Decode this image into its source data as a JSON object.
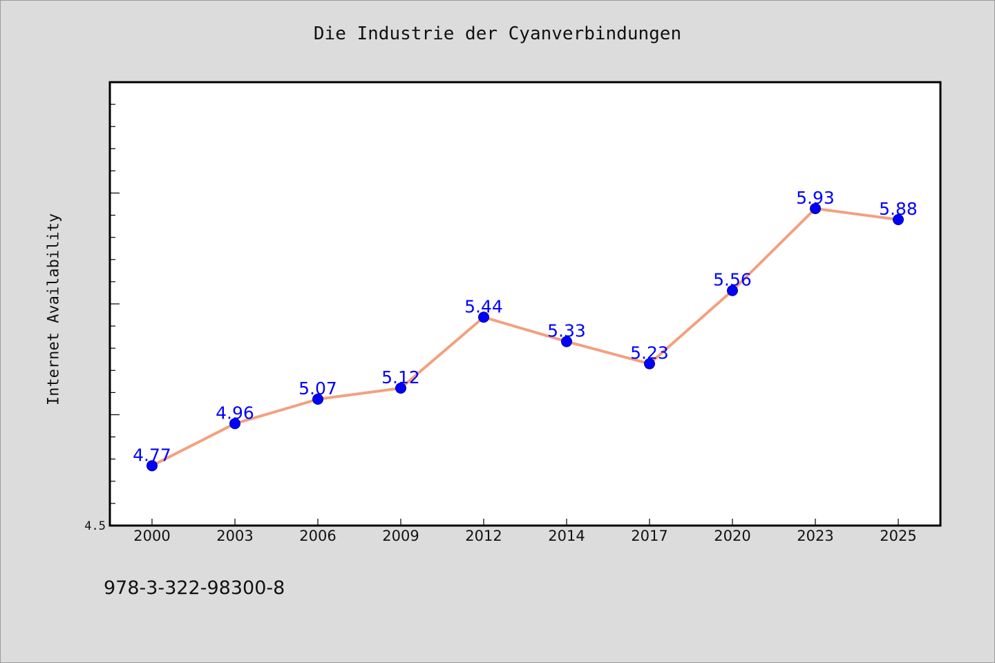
{
  "chart_data": {
    "type": "line",
    "title": "Die Industrie der Cyanverbindungen",
    "xlabel": "",
    "ylabel": "Internet Availability",
    "categories": [
      "2000",
      "2003",
      "2006",
      "2009",
      "2012",
      "2014",
      "2017",
      "2020",
      "2023",
      "2025"
    ],
    "series": [
      {
        "values": [
          4.77,
          4.96,
          5.07,
          5.12,
          5.44,
          5.33,
          5.23,
          5.56,
          5.93,
          5.88
        ],
        "line_color": "#f4a07f",
        "marker_color": "#0000ff"
      }
    ],
    "data_labels": [
      "4.77",
      "4.96",
      "5.07",
      "5.12",
      "5.44",
      "5.33",
      "5.23",
      "5.56",
      "5.93",
      "5.88"
    ],
    "ylim": [
      4.5,
      6.5
    ],
    "y_tick_labels": [
      "4.5"
    ],
    "grid": false,
    "legend": "none",
    "label_color": "#0000ff",
    "plot_background": "#ffffff",
    "page_background": "#dcdcdc"
  },
  "footnote": "978-3-322-98300-8"
}
